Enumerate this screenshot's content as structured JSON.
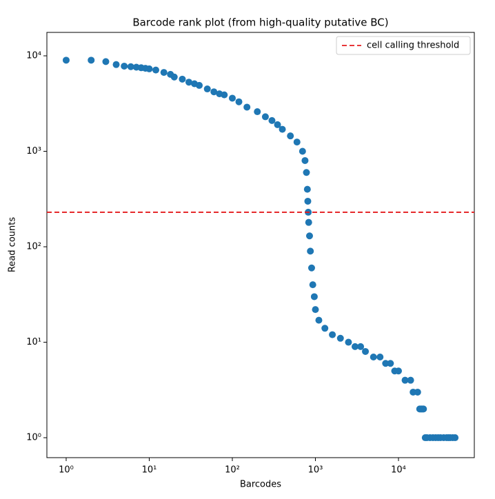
{
  "chart_data": {
    "type": "scatter",
    "title": "Barcode rank plot (from high-quality putative BC)",
    "x_label": "Barcodes",
    "y_label": "Read counts",
    "x_scale": "log",
    "y_scale": "log",
    "xlim": [
      0.586,
      81800
    ],
    "ylim": [
      0.618,
      17600
    ],
    "xticks": [
      {
        "value": 1,
        "label": "10⁰"
      },
      {
        "value": 10,
        "label": "10¹"
      },
      {
        "value": 100,
        "label": "10²"
      },
      {
        "value": 1000,
        "label": "10³"
      },
      {
        "value": 10000,
        "label": "10⁴"
      }
    ],
    "yticks": [
      {
        "value": 1,
        "label": "10⁰"
      },
      {
        "value": 10,
        "label": "10¹"
      },
      {
        "value": 100,
        "label": "10²"
      },
      {
        "value": 1000,
        "label": "10³"
      },
      {
        "value": 10000,
        "label": "10⁴"
      }
    ],
    "legend_position": "upper right",
    "threshold": {
      "name": "cell calling threshold",
      "value": 230,
      "color": "#e41a1c"
    },
    "series": [
      {
        "color": "#1f77b4",
        "x": [
          1,
          2,
          3,
          4,
          5,
          6,
          7,
          8,
          9,
          10,
          12,
          15,
          18,
          20,
          25,
          30,
          35,
          40,
          50,
          60,
          70,
          80,
          100,
          120,
          150,
          200,
          250,
          300,
          350,
          400,
          500,
          600,
          700,
          750,
          780,
          800,
          810,
          820,
          830,
          850,
          870,
          900,
          930,
          970,
          1000,
          1100,
          1300,
          1600,
          2000,
          2500,
          3000,
          3500,
          4000,
          5000,
          6000,
          7000,
          8000,
          9000,
          10000,
          12000,
          14000,
          15000,
          17000,
          18000,
          18500,
          19000,
          19500,
          20000,
          21000,
          22000,
          24000,
          26000,
          28000,
          30000,
          32000,
          35000,
          38000,
          40000,
          42000,
          45000,
          48000
        ],
        "values": [
          9000,
          9000,
          8700,
          8100,
          7800,
          7700,
          7600,
          7500,
          7400,
          7300,
          7100,
          6700,
          6400,
          6000,
          5700,
          5300,
          5100,
          4900,
          4500,
          4200,
          4000,
          3900,
          3600,
          3300,
          2900,
          2600,
          2300,
          2100,
          1900,
          1700,
          1450,
          1250,
          1000,
          800,
          600,
          400,
          300,
          230,
          180,
          130,
          90,
          60,
          40,
          30,
          22,
          17,
          14,
          12,
          11,
          10,
          9,
          9,
          8,
          7,
          7,
          6,
          6,
          5,
          5,
          4,
          4,
          3,
          3,
          2,
          2,
          2,
          2,
          2,
          1,
          1,
          1,
          1,
          1,
          1,
          1,
          1,
          1,
          1,
          1,
          1,
          1
        ]
      }
    ]
  }
}
